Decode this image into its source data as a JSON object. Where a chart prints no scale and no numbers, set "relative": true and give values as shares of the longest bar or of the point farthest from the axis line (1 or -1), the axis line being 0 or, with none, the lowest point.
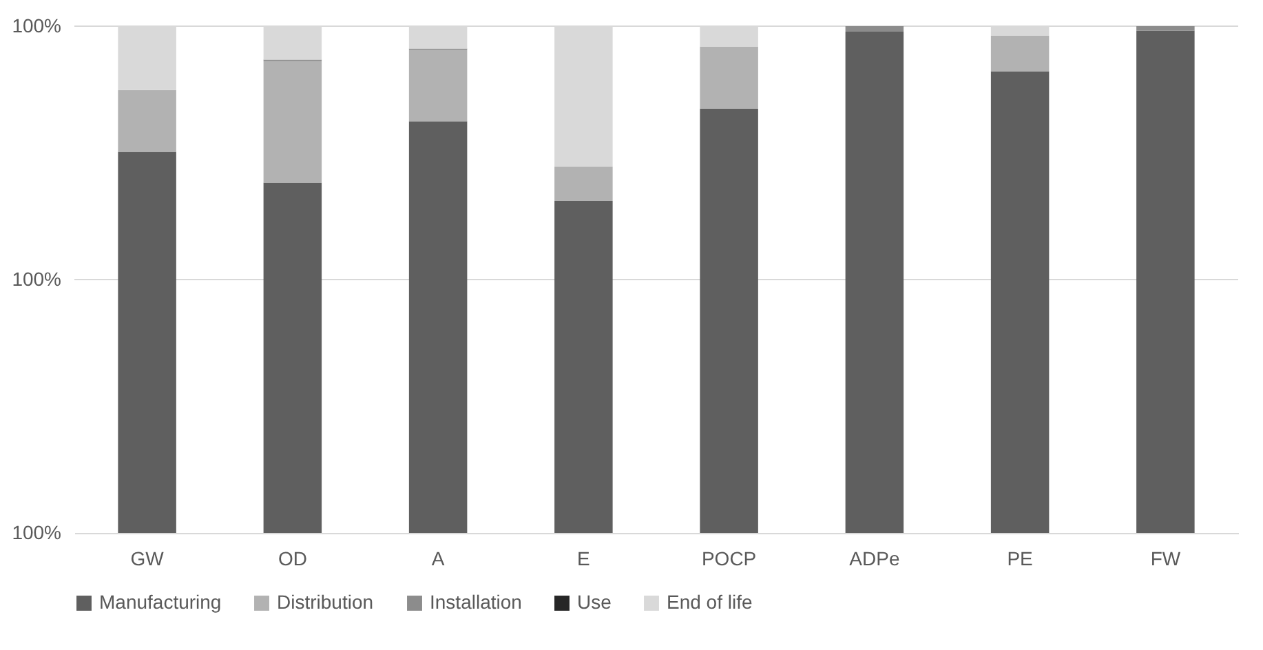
{
  "chart_data": {
    "type": "bar",
    "stacked": true,
    "relative": true,
    "categories": [
      "GW",
      "OD",
      "A",
      "E",
      "POCP",
      "ADPe",
      "PE",
      "FW"
    ],
    "series": [
      {
        "name": "Manufacturing",
        "color": "#5f5f5f",
        "values": [
          0.752,
          0.691,
          0.812,
          0.655,
          0.837,
          0.989,
          0.911,
          0.991
        ]
      },
      {
        "name": "Distribution",
        "color": "#b2b2b2",
        "values": [
          0.122,
          0.24,
          0.141,
          0.068,
          0.123,
          0,
          0.07,
          0
        ]
      },
      {
        "name": "Installation",
        "color": "#8c8c8c",
        "values": [
          0,
          0.003,
          0.003,
          0,
          0,
          0.011,
          0,
          0.009
        ]
      },
      {
        "name": "Use",
        "color": "#262626",
        "values": [
          0,
          0,
          0,
          0,
          0,
          0,
          0,
          0
        ]
      },
      {
        "name": "End of life",
        "color": "#d9d9d9",
        "values": [
          0.126,
          0.066,
          0.044,
          0.277,
          0.04,
          0,
          0.019,
          0
        ]
      }
    ],
    "annotations": [
      "100%",
      "100%",
      "100%"
    ],
    "ref_lines": [
      {
        "axis": "y",
        "value": 0.5,
        "color": "#d9d9d9"
      },
      {
        "axis": "y",
        "value": 1,
        "color": "#d9d9d9"
      }
    ],
    "legend": "bottom"
  }
}
